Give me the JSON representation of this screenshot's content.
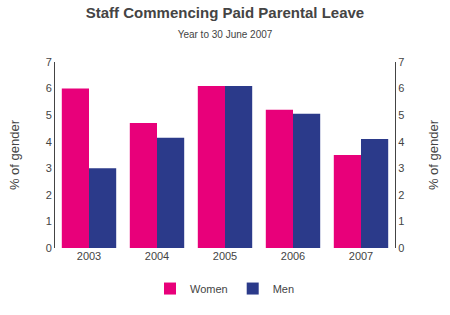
{
  "chart_data": {
    "type": "bar",
    "title": "Staff Commencing Paid Parental Leave",
    "subtitle": "Year to 30 June 2007",
    "categories": [
      2003,
      2004,
      2005,
      2006,
      2007
    ],
    "series": [
      {
        "name": "Women",
        "color": "#e8007a",
        "values": [
          6.0,
          4.7,
          6.1,
          5.2,
          3.5
        ]
      },
      {
        "name": "Men",
        "color": "#2b3a8a",
        "values": [
          3.0,
          4.15,
          6.1,
          5.05,
          4.1
        ]
      }
    ],
    "ylabel": "% of gender",
    "ylim": [
      0,
      7
    ],
    "yticks": [
      0,
      1,
      2,
      3,
      4,
      5,
      6,
      7
    ],
    "y2label": "% of gender",
    "y2lim": [
      0,
      7
    ],
    "y2ticks": [
      0,
      1,
      2,
      3,
      4,
      5,
      6,
      7
    ],
    "grid": false,
    "legend": "bottom"
  }
}
